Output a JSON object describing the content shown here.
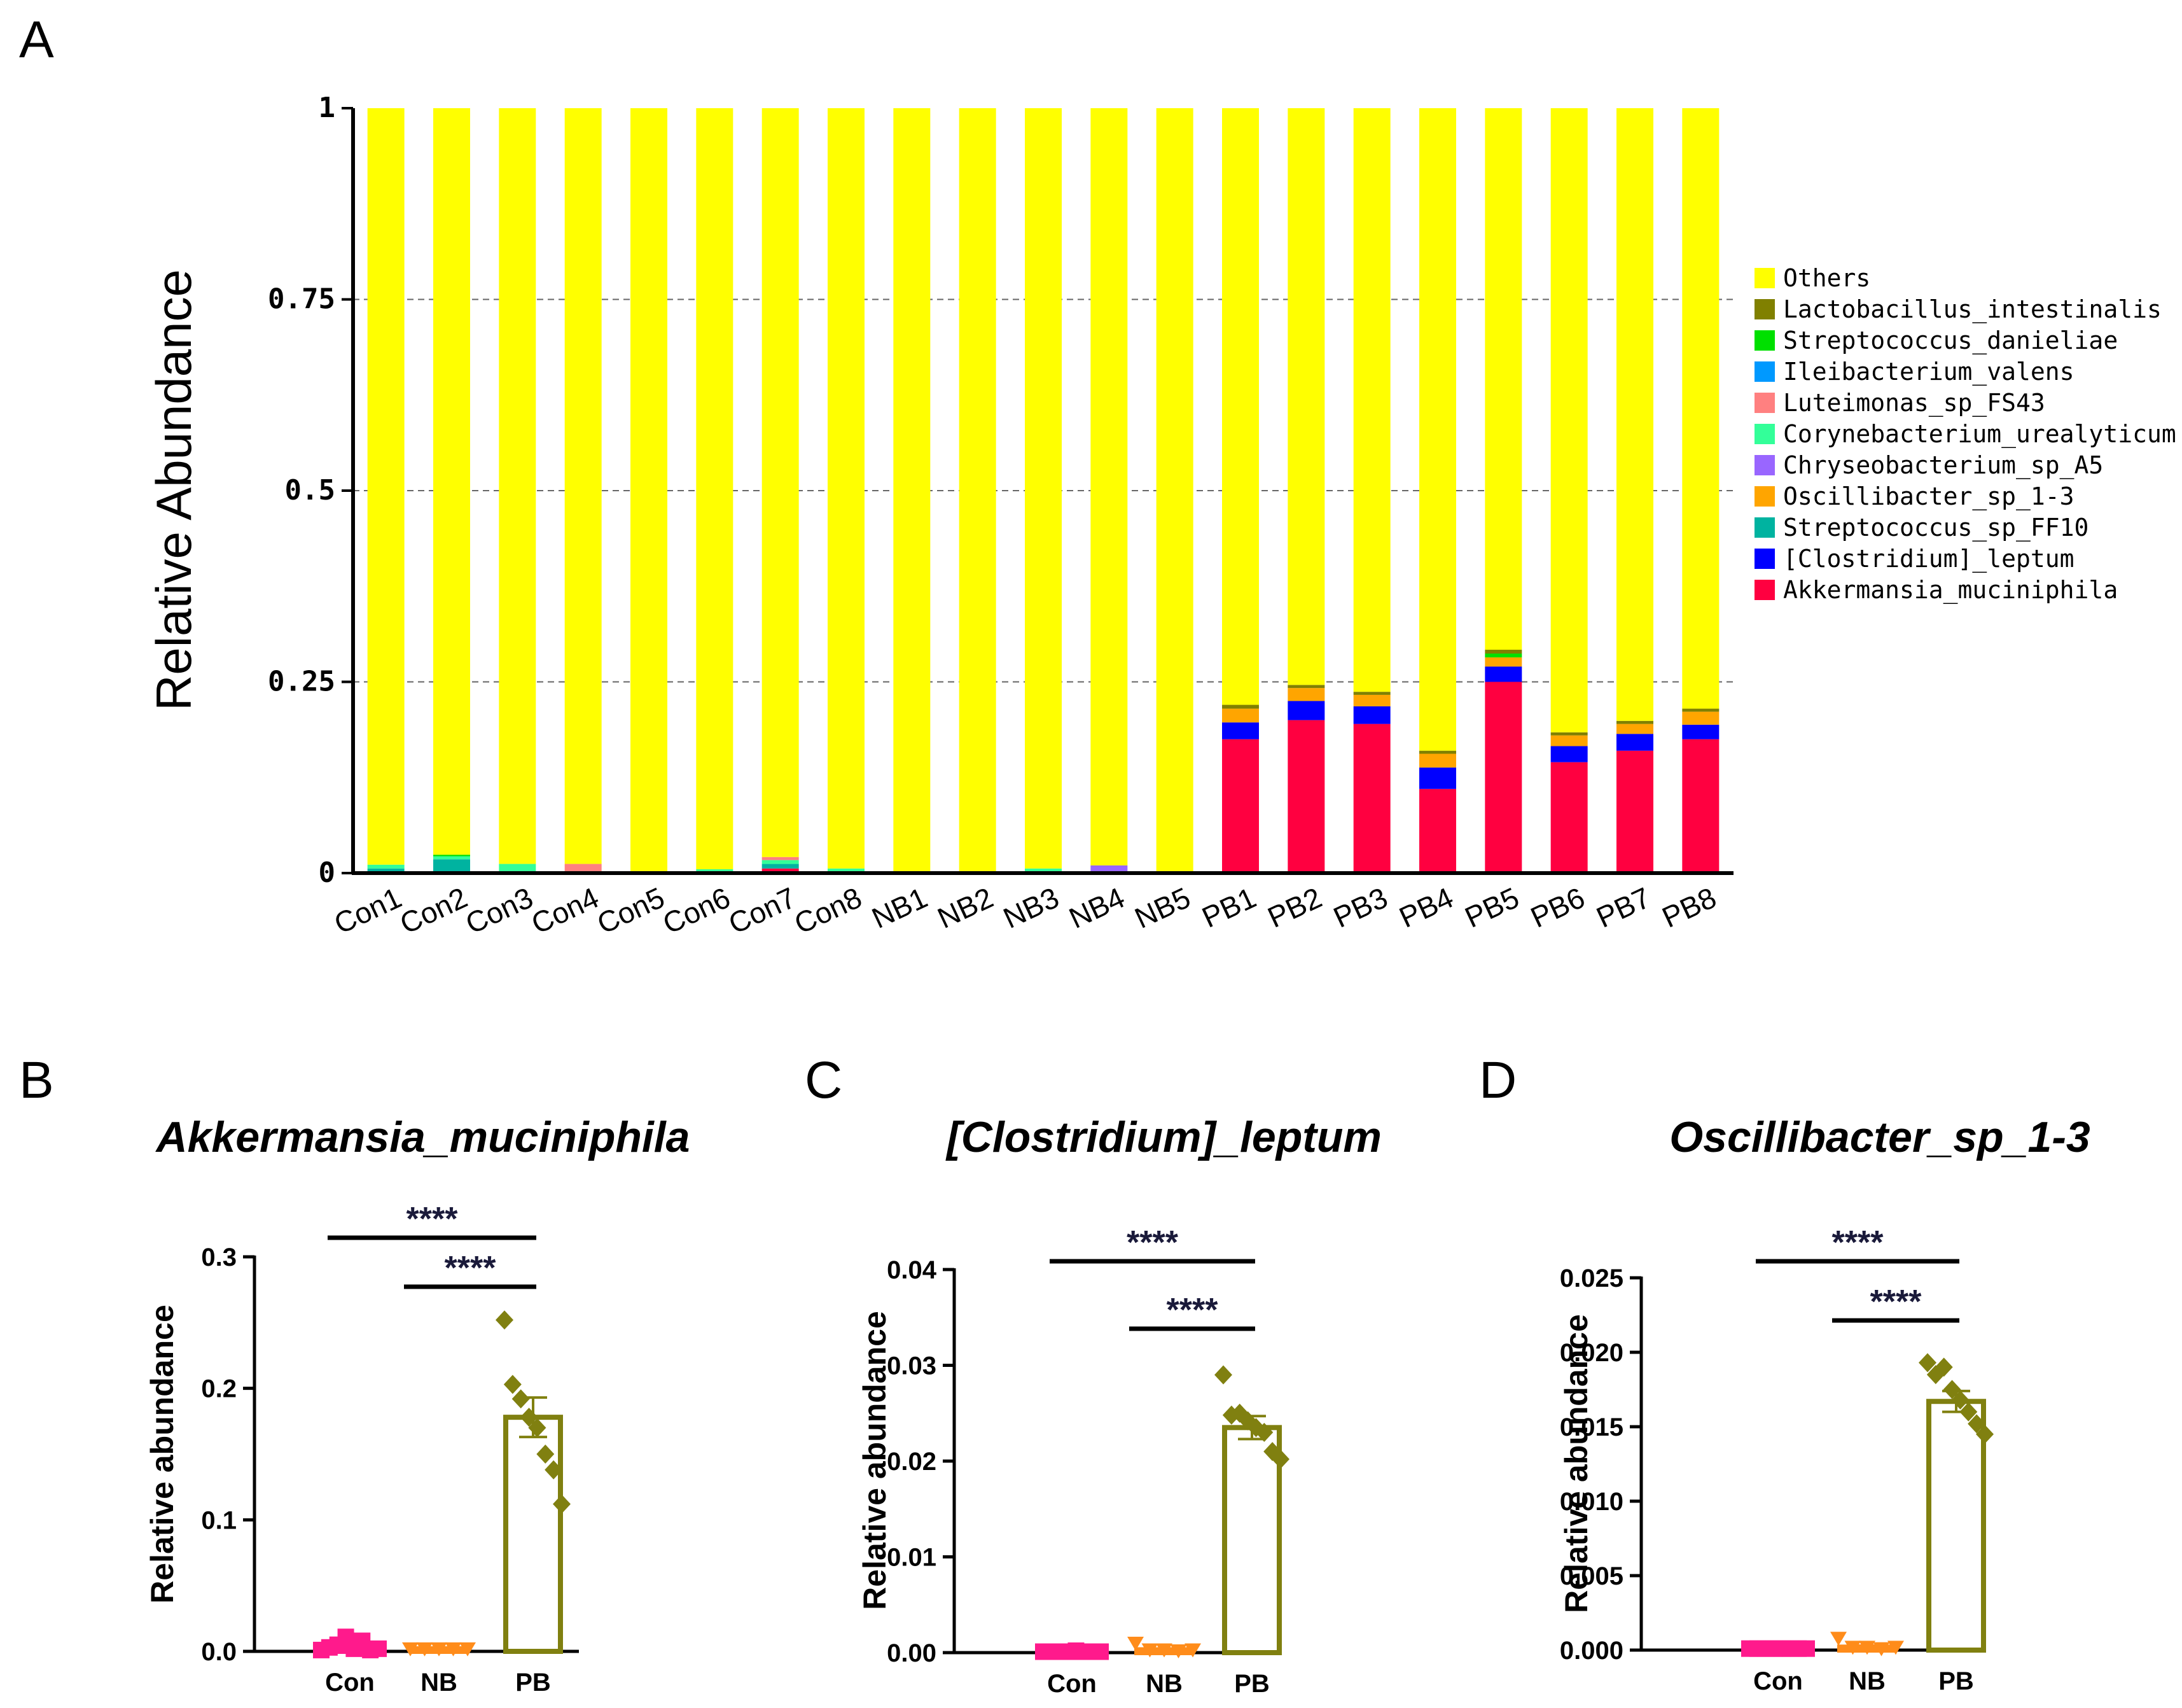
{
  "panels": {
    "A": "A",
    "B": "B",
    "C": "C",
    "D": "D"
  },
  "chart_data": [
    {
      "type": "bar",
      "stacked": true,
      "ylabel": "Relative Abundance",
      "ylim": [
        0,
        1
      ],
      "yticks": [
        "0",
        "0.25",
        "0.5",
        "0.75",
        "1"
      ],
      "grid": "dashed horizontal",
      "legend_position": "right",
      "categories": [
        "Con1",
        "Con2",
        "Con3",
        "Con4",
        "Con5",
        "Con6",
        "Con7",
        "Con8",
        "NB1",
        "NB2",
        "NB3",
        "NB4",
        "NB5",
        "PB1",
        "PB2",
        "PB3",
        "PB4",
        "PB5",
        "PB6",
        "PB7",
        "PB8"
      ],
      "legend": [
        "Others",
        "Lactobacillus_intestinalis",
        "Streptococcus_danieliae",
        "Ileibacterium_valens",
        "Luteimonas_sp_FS43",
        "Corynebacterium_urealyticum",
        "Chryseobacterium_sp_A5",
        "Oscillibacter_sp_1-3",
        "Streptococcus_sp_FF10",
        "[Clostridium]_leptum",
        "Akkermansia_muciniphila"
      ],
      "colors": {
        "Others": "#ffff00",
        "Lactobacillus_intestinalis": "#808000",
        "Streptococcus_danieliae": "#00e000",
        "Ileibacterium_valens": "#0099ff",
        "Luteimonas_sp_FS43": "#ff8080",
        "Corynebacterium_urealyticum": "#33ff99",
        "Chryseobacterium_sp_A5": "#9966ff",
        "Oscillibacter_sp_1-3": "#ffa500",
        "Streptococcus_sp_FF10": "#00b3a0",
        "[Clostridium]_leptum": "#0000ff",
        "Akkermansia_muciniphila": "#ff0040"
      },
      "series": [
        {
          "name": "Akkermansia_muciniphila",
          "values": [
            0,
            0,
            0,
            0,
            0,
            0,
            0.006,
            0,
            0,
            0,
            0,
            0,
            0,
            0.175,
            0.2,
            0.195,
            0.11,
            0.25,
            0.145,
            0.16,
            0.175
          ]
        },
        {
          "name": "[Clostridium]_leptum",
          "values": [
            0,
            0,
            0,
            0,
            0,
            0,
            0,
            0,
            0,
            0,
            0,
            0,
            0,
            0.022,
            0.025,
            0.023,
            0.028,
            0.02,
            0.021,
            0.022,
            0.019
          ]
        },
        {
          "name": "Streptococcus_sp_FF10",
          "values": [
            0.006,
            0.018,
            0.002,
            0,
            0,
            0.002,
            0.006,
            0.002,
            0,
            0,
            0.002,
            0,
            0.002,
            0,
            0,
            0,
            0,
            0,
            0,
            0,
            0
          ]
        },
        {
          "name": "Oscillibacter_sp_1-3",
          "values": [
            0,
            0,
            0,
            0,
            0,
            0,
            0,
            0,
            0,
            0,
            0,
            0,
            0,
            0.018,
            0.017,
            0.015,
            0.018,
            0.012,
            0.014,
            0.013,
            0.017
          ]
        },
        {
          "name": "Chryseobacterium_sp_A5",
          "values": [
            0,
            0,
            0,
            0,
            0,
            0,
            0,
            0,
            0,
            0,
            0,
            0.01,
            0,
            0,
            0,
            0,
            0,
            0,
            0,
            0,
            0
          ]
        },
        {
          "name": "Corynebacterium_urealyticum",
          "values": [
            0.005,
            0.004,
            0.01,
            0,
            0,
            0.003,
            0.005,
            0.004,
            0,
            0,
            0.004,
            0,
            0,
            0,
            0,
            0,
            0,
            0,
            0,
            0,
            0
          ]
        },
        {
          "name": "Luteimonas_sp_FS43",
          "values": [
            0,
            0,
            0,
            0.012,
            0,
            0,
            0.004,
            0,
            0,
            0,
            0,
            0,
            0,
            0,
            0,
            0,
            0,
            0,
            0,
            0,
            0
          ]
        },
        {
          "name": "Ileibacterium_valens",
          "values": [
            0,
            0,
            0,
            0,
            0,
            0,
            0,
            0,
            0,
            0,
            0,
            0,
            0,
            0,
            0,
            0,
            0,
            0,
            0,
            0,
            0
          ]
        },
        {
          "name": "Streptococcus_danieliae",
          "values": [
            0,
            0.002,
            0,
            0,
            0,
            0,
            0,
            0,
            0,
            0,
            0,
            0,
            0,
            0,
            0,
            0,
            0,
            0.005,
            0,
            0,
            0
          ]
        },
        {
          "name": "Lactobacillus_intestinalis",
          "values": [
            0,
            0,
            0,
            0,
            0,
            0,
            0,
            0,
            0,
            0,
            0,
            0,
            0,
            0.005,
            0.004,
            0.004,
            0.004,
            0.005,
            0.004,
            0.004,
            0.004
          ]
        }
      ]
    },
    {
      "type": "bar",
      "title": "Akkermansia_muciniphila",
      "ylabel": "Relative abundance",
      "ylim": [
        0,
        0.3
      ],
      "yticks": [
        "0.0",
        "0.1",
        "0.2",
        "0.3"
      ],
      "categories": [
        "Con",
        "NB",
        "PB"
      ],
      "colors": {
        "Con": "#ff1a8c",
        "NB": "#ff8c1a",
        "PB": "#808010"
      },
      "means": [
        0.003,
        0.002,
        0.178
      ],
      "sem": [
        0.001,
        0.0003,
        0.015
      ],
      "points": {
        "Con": [
          0.001,
          0.003,
          0.005,
          0.011,
          0.002,
          0.008,
          0.001,
          0.002
        ],
        "NB": [
          0.002,
          0.002,
          0.002,
          0.002,
          0.002
        ],
        "PB": [
          0.252,
          0.203,
          0.192,
          0.178,
          0.17,
          0.15,
          0.138,
          0.112
        ]
      },
      "significance": [
        {
          "pair": "Con-PB",
          "label": "****"
        },
        {
          "pair": "NB-PB",
          "label": "****"
        }
      ]
    },
    {
      "type": "bar",
      "title": "[Clostridium]_leptum",
      "ylabel": "Relative abundance",
      "ylim": [
        0,
        0.04
      ],
      "yticks": [
        "0.00",
        "0.01",
        "0.02",
        "0.03",
        "0.04"
      ],
      "categories": [
        "Con",
        "NB",
        "PB"
      ],
      "colors": {
        "Con": "#ff1a8c",
        "NB": "#ff8c1a",
        "PB": "#808010"
      },
      "means": [
        0.0001,
        0.0003,
        0.0235
      ],
      "sem": [
        2e-05,
        0.0001,
        0.0012
      ],
      "points": {
        "Con": [
          0.0001,
          0.0001,
          0.0001,
          0.0001,
          0.0002,
          0.0001,
          0.0001,
          0.0001
        ],
        "NB": [
          0.001,
          0.0003,
          0.0003,
          0.0002,
          0.0003
        ],
        "PB": [
          0.029,
          0.0248,
          0.025,
          0.0242,
          0.0235,
          0.023,
          0.021,
          0.0202
        ]
      },
      "significance": [
        {
          "pair": "Con-PB",
          "label": "****"
        },
        {
          "pair": "NB-PB",
          "label": "****"
        }
      ]
    },
    {
      "type": "bar",
      "title": "Oscillibacter_sp_1-3",
      "ylabel": "Relative abundance",
      "ylim": [
        0,
        0.025
      ],
      "yticks": [
        "0.000",
        "0.005",
        "0.010",
        "0.015",
        "0.020",
        "0.025"
      ],
      "categories": [
        "Con",
        "NB",
        "PB"
      ],
      "colors": {
        "Con": "#ff1a8c",
        "NB": "#ff8c1a",
        "PB": "#808010"
      },
      "means": [
        0.0001,
        0.0002,
        0.0167
      ],
      "sem": [
        2e-05,
        0.0001,
        0.0007
      ],
      "points": {
        "Con": [
          0.0001,
          0.0001,
          0.0001,
          0.0001,
          0.0001,
          0.0001,
          0.0001,
          0.0001
        ],
        "NB": [
          0.0008,
          0.0002,
          0.0002,
          0.0001,
          0.0002
        ],
        "PB": [
          0.0193,
          0.0185,
          0.019,
          0.0175,
          0.0168,
          0.016,
          0.0152,
          0.0145
        ]
      },
      "significance": [
        {
          "pair": "Con-PB",
          "label": "****"
        },
        {
          "pair": "NB-PB",
          "label": "****"
        }
      ]
    }
  ]
}
